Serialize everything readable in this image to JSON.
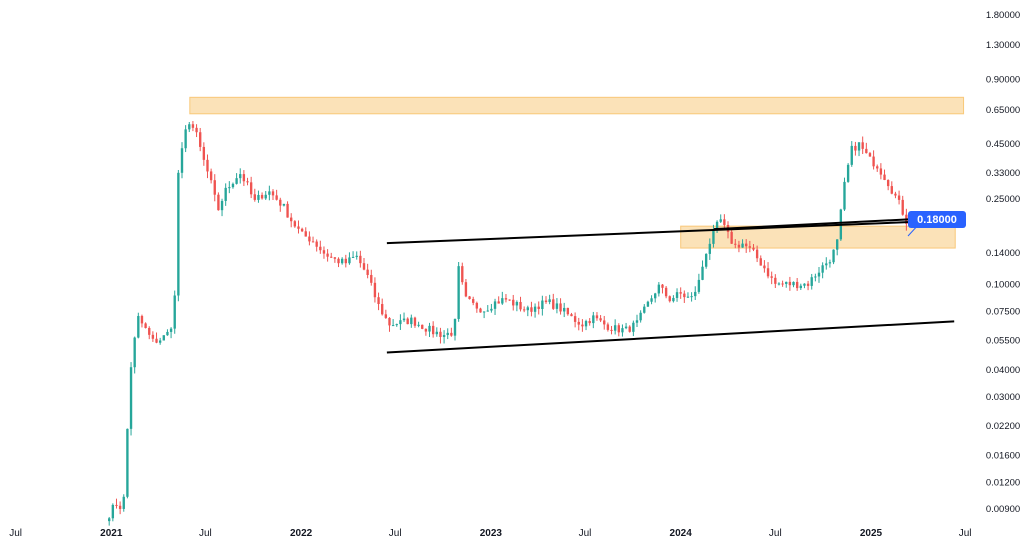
{
  "chart_data": {
    "type": "candlestick",
    "title": "",
    "xlabel": "",
    "ylabel": "",
    "y_scale": "log",
    "ylim": [
      0.0078,
      2.1
    ],
    "xlim": [
      "2020-06-01",
      "2025-07-20"
    ],
    "grid": false,
    "y_tick_labels": [
      "1.80000",
      "1.30000",
      "0.90000",
      "0.65000",
      "0.45000",
      "0.33000",
      "0.25000",
      "0.14000",
      "0.10000",
      "0.07500",
      "0.05500",
      "0.04000",
      "0.03000",
      "0.02200",
      "0.01600",
      "0.01200",
      "0.00900"
    ],
    "x_ticks": [
      {
        "date": "2020-07-01",
        "label": "Jul",
        "bold": false
      },
      {
        "date": "2021-01-01",
        "label": "2021",
        "bold": true
      },
      {
        "date": "2021-07-01",
        "label": "Jul",
        "bold": false
      },
      {
        "date": "2022-01-01",
        "label": "2022",
        "bold": true
      },
      {
        "date": "2022-07-01",
        "label": "Jul",
        "bold": false
      },
      {
        "date": "2023-01-01",
        "label": "2023",
        "bold": true
      },
      {
        "date": "2023-07-01",
        "label": "Jul",
        "bold": false
      },
      {
        "date": "2024-01-01",
        "label": "2024",
        "bold": true
      },
      {
        "date": "2024-07-01",
        "label": "Jul",
        "bold": false
      },
      {
        "date": "2025-01-01",
        "label": "2025",
        "bold": true
      },
      {
        "date": "2025-07-01",
        "label": "Jul",
        "bold": false
      }
    ],
    "price_path": [
      [
        "2020-12-28",
        0.0085
      ],
      [
        "2021-01-10",
        0.0095
      ],
      [
        "2021-01-24",
        0.009
      ],
      [
        "2021-02-07",
        0.04
      ],
      [
        "2021-02-21",
        0.07
      ],
      [
        "2021-03-07",
        0.062
      ],
      [
        "2021-03-21",
        0.054
      ],
      [
        "2021-04-04",
        0.055
      ],
      [
        "2021-04-18",
        0.058
      ],
      [
        "2021-05-02",
        0.07
      ],
      [
        "2021-05-09",
        0.32
      ],
      [
        "2021-05-23",
        0.5
      ],
      [
        "2021-05-30",
        0.58
      ],
      [
        "2021-06-13",
        0.5
      ],
      [
        "2021-06-27",
        0.38
      ],
      [
        "2021-07-11",
        0.3
      ],
      [
        "2021-07-25",
        0.22
      ],
      [
        "2021-08-08",
        0.27
      ],
      [
        "2021-08-22",
        0.3
      ],
      [
        "2021-09-05",
        0.33
      ],
      [
        "2021-09-19",
        0.29
      ],
      [
        "2021-10-03",
        0.24
      ],
      [
        "2021-10-17",
        0.26
      ],
      [
        "2021-10-31",
        0.27
      ],
      [
        "2021-11-14",
        0.25
      ],
      [
        "2021-11-28",
        0.23
      ],
      [
        "2021-12-12",
        0.2
      ],
      [
        "2022-01-02",
        0.17
      ],
      [
        "2022-01-23",
        0.16
      ],
      [
        "2022-02-13",
        0.14
      ],
      [
        "2022-03-06",
        0.13
      ],
      [
        "2022-03-27",
        0.125
      ],
      [
        "2022-04-17",
        0.135
      ],
      [
        "2022-05-08",
        0.11
      ],
      [
        "2022-05-29",
        0.08
      ],
      [
        "2022-06-19",
        0.065
      ],
      [
        "2022-07-10",
        0.066
      ],
      [
        "2022-07-31",
        0.068
      ],
      [
        "2022-08-21",
        0.064
      ],
      [
        "2022-09-11",
        0.06
      ],
      [
        "2022-10-02",
        0.058
      ],
      [
        "2022-10-23",
        0.06
      ],
      [
        "2022-10-30",
        0.12
      ],
      [
        "2022-11-13",
        0.085
      ],
      [
        "2022-11-27",
        0.08
      ],
      [
        "2022-12-18",
        0.076
      ],
      [
        "2023-01-08",
        0.082
      ],
      [
        "2023-01-29",
        0.085
      ],
      [
        "2023-02-19",
        0.08
      ],
      [
        "2023-03-12",
        0.075
      ],
      [
        "2023-04-02",
        0.08
      ],
      [
        "2023-04-23",
        0.082
      ],
      [
        "2023-05-14",
        0.077
      ],
      [
        "2023-06-04",
        0.07
      ],
      [
        "2023-06-25",
        0.065
      ],
      [
        "2023-07-16",
        0.07
      ],
      [
        "2023-08-06",
        0.065
      ],
      [
        "2023-08-27",
        0.062
      ],
      [
        "2023-09-17",
        0.061
      ],
      [
        "2023-10-08",
        0.065
      ],
      [
        "2023-10-29",
        0.08
      ],
      [
        "2023-11-19",
        0.098
      ],
      [
        "2023-12-10",
        0.085
      ],
      [
        "2023-12-31",
        0.09
      ],
      [
        "2024-01-21",
        0.085
      ],
      [
        "2024-02-04",
        0.1
      ],
      [
        "2024-02-18",
        0.14
      ],
      [
        "2024-03-03",
        0.17
      ],
      [
        "2024-03-17",
        0.2
      ],
      [
        "2024-03-31",
        0.17
      ],
      [
        "2024-04-14",
        0.15
      ],
      [
        "2024-04-28",
        0.155
      ],
      [
        "2024-05-19",
        0.14
      ],
      [
        "2024-06-09",
        0.12
      ],
      [
        "2024-06-30",
        0.1
      ],
      [
        "2024-07-21",
        0.1
      ],
      [
        "2024-08-11",
        0.1
      ],
      [
        "2024-09-01",
        0.1
      ],
      [
        "2024-09-22",
        0.115
      ],
      [
        "2024-10-13",
        0.13
      ],
      [
        "2024-10-27",
        0.15
      ],
      [
        "2024-11-10",
        0.28
      ],
      [
        "2024-11-24",
        0.42
      ],
      [
        "2024-12-08",
        0.45
      ],
      [
        "2024-12-29",
        0.38
      ],
      [
        "2025-01-12",
        0.36
      ],
      [
        "2025-02-02",
        0.3
      ],
      [
        "2025-02-23",
        0.24
      ],
      [
        "2025-03-09",
        0.2
      ],
      [
        "2025-03-16",
        0.18
      ]
    ],
    "annotations": {
      "resistance_zone": {
        "from": "2021-06-01",
        "to": "2025-06-28",
        "low": 0.62,
        "high": 0.74,
        "color": "#f7be62"
      },
      "support_zone": {
        "from": "2024-01-01",
        "to": "2025-06-12",
        "low": 0.147,
        "high": 0.186,
        "color": "#f7be62"
      },
      "upper_channel_line": {
        "from": [
          "2022-06-15",
          0.155
        ],
        "to": [
          "2025-06-10",
          0.198
        ]
      },
      "lower_channel_line": {
        "from": [
          "2022-06-15",
          0.048
        ],
        "to": [
          "2025-06-10",
          0.067
        ]
      },
      "breakout_line": {
        "from": [
          "2024-03-05",
          0.18
        ],
        "to": [
          "2025-06-10",
          0.205
        ]
      }
    },
    "price_label": {
      "value": 0.18,
      "text": "0.18000",
      "color": "#2962ff"
    },
    "colors": {
      "up": "#26a69a",
      "down": "#ef5350",
      "line": "#000000",
      "axis_text": "#131722"
    }
  }
}
